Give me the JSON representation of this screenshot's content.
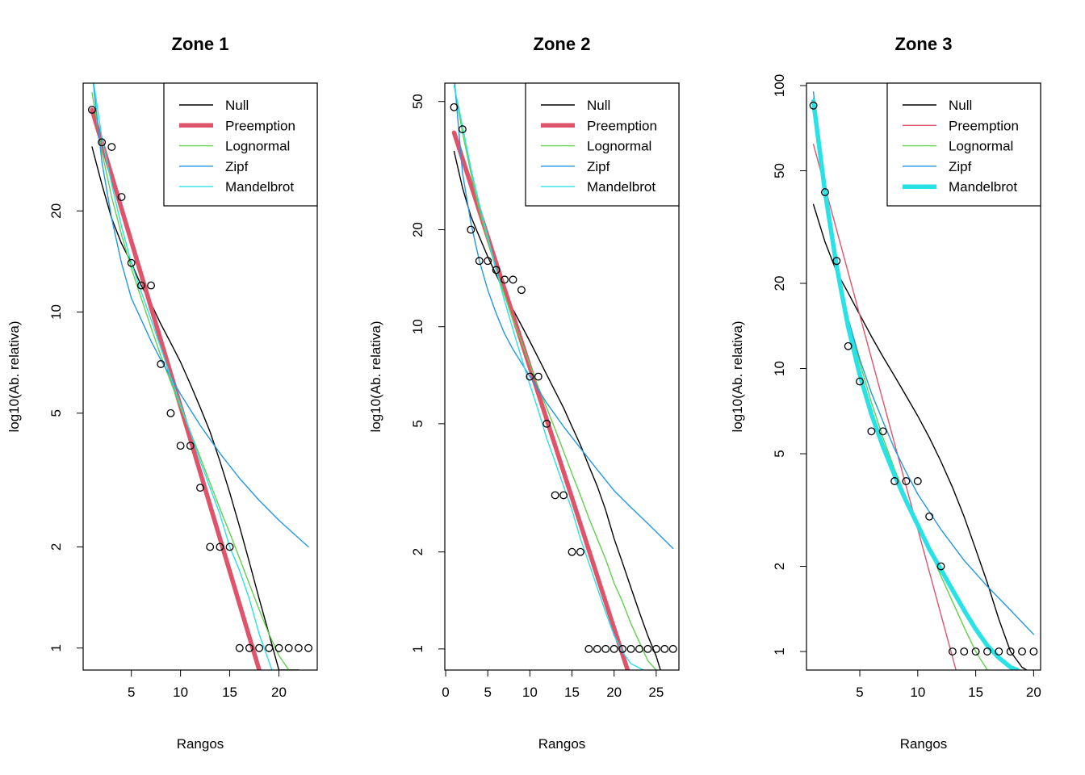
{
  "chart_data": [
    {
      "type": "line",
      "title": "Zone 1",
      "xlabel": "Rangos",
      "ylabel": "log10(Ab. relativa)",
      "xlim": [
        0.1,
        23.9
      ],
      "ylim": [
        0.86,
        48
      ],
      "log_y": true,
      "x_ticks": [
        5,
        10,
        15,
        20
      ],
      "y_ticks": [
        1,
        2,
        5,
        10,
        20
      ],
      "legend_position": "top-right",
      "legend": [
        "Null",
        "Preemption",
        "Lognormal",
        "Zipf",
        "Mandelbrot"
      ],
      "highlight": "Preemption",
      "observed": {
        "x": [
          1,
          2,
          3,
          4,
          5,
          6,
          7,
          8,
          9,
          10,
          11,
          12,
          13,
          14,
          15,
          16,
          17,
          18,
          19,
          20,
          21,
          22,
          23
        ],
        "y": [
          40,
          32,
          31,
          22,
          14,
          12,
          12,
          7,
          5,
          4,
          4,
          3,
          2,
          2,
          2,
          1,
          1,
          1,
          1,
          1,
          1,
          1,
          1
        ]
      },
      "series": [
        {
          "name": "Null",
          "color": "#000000",
          "x": [
            1,
            2,
            3,
            4,
            5,
            6,
            7,
            8,
            9,
            10,
            11,
            12,
            13,
            14,
            15,
            16,
            17,
            18,
            19,
            20,
            21,
            22
          ],
          "y": [
            31,
            24,
            19,
            16,
            14,
            12,
            10.6,
            9.2,
            8.1,
            7.1,
            6.1,
            5.2,
            4.4,
            3.6,
            2.9,
            2.3,
            1.8,
            1.4,
            1.1,
            0.86,
            0.86,
            0.86
          ]
        },
        {
          "name": "Preemption",
          "color": "#DF536B",
          "x": [
            1,
            18
          ],
          "y": [
            40,
            0.86
          ]
        },
        {
          "name": "Lognormal",
          "color": "#61D04F",
          "x": [
            1,
            2,
            3,
            4,
            5,
            6,
            7,
            8,
            9,
            10,
            11,
            12,
            13,
            14,
            15,
            16,
            17,
            18,
            19,
            20,
            21
          ],
          "y": [
            45,
            30,
            22,
            17,
            13.5,
            11,
            9,
            7.4,
            6.2,
            5.2,
            4.4,
            3.7,
            3.1,
            2.6,
            2.2,
            1.85,
            1.55,
            1.3,
            1.1,
            0.95,
            0.86
          ]
        },
        {
          "name": "Zipf",
          "color": "#2297E6",
          "x": [
            1,
            2,
            3,
            4,
            5,
            6,
            7,
            8,
            10,
            12,
            14,
            16,
            18,
            20,
            23
          ],
          "y": [
            52,
            28,
            19,
            14,
            11,
            9.5,
            8.2,
            7.2,
            5.7,
            4.6,
            3.8,
            3.2,
            2.75,
            2.4,
            2.0
          ]
        },
        {
          "name": "Mandelbrot",
          "color": "#28E2E5",
          "x": [
            1,
            2,
            3,
            4,
            5,
            6,
            7,
            8,
            9,
            10,
            11,
            12,
            13,
            14,
            15,
            16,
            17,
            18,
            19.3
          ],
          "y": [
            52,
            33,
            24,
            18,
            14,
            11.5,
            9.5,
            7.8,
            6.4,
            5.3,
            4.4,
            3.6,
            3.0,
            2.5,
            2.0,
            1.7,
            1.4,
            1.1,
            0.86
          ]
        }
      ]
    },
    {
      "type": "line",
      "title": "Zone 2",
      "xlabel": "Rangos",
      "ylabel": "log10(Ab. relativa)",
      "xlim": [
        -0.1,
        27.7
      ],
      "ylim": [
        0.86,
        57
      ],
      "log_y": true,
      "x_ticks": [
        0,
        5,
        10,
        15,
        20,
        25
      ],
      "y_ticks": [
        1,
        2,
        5,
        10,
        20,
        50
      ],
      "legend_position": "top-right",
      "legend": [
        "Null",
        "Preemption",
        "Lognormal",
        "Zipf",
        "Mandelbrot"
      ],
      "highlight": "Preemption",
      "observed": {
        "x": [
          1,
          2,
          3,
          4,
          5,
          6,
          7,
          8,
          9,
          10,
          11,
          12,
          13,
          14,
          15,
          16,
          17,
          18,
          19,
          20,
          21,
          22,
          23,
          24,
          25,
          26,
          27
        ],
        "y": [
          48,
          41,
          20,
          16,
          16,
          15,
          14,
          14,
          13,
          7,
          7,
          5,
          3,
          3,
          2,
          2,
          1,
          1,
          1,
          1,
          1,
          1,
          1,
          1,
          1,
          1,
          1
        ]
      },
      "series": [
        {
          "name": "Null",
          "color": "#000000",
          "x": [
            1,
            2,
            3,
            4,
            5,
            6,
            7,
            8,
            9,
            10,
            11,
            12,
            13,
            14,
            15,
            16,
            17,
            18,
            19,
            20,
            21,
            22,
            23,
            24,
            25,
            25.5
          ],
          "y": [
            35,
            27,
            22,
            19,
            16.5,
            14.5,
            12.8,
            11.3,
            10.1,
            9.0,
            8.0,
            7.1,
            6.3,
            5.6,
            4.9,
            4.3,
            3.7,
            3.2,
            2.7,
            2.2,
            1.85,
            1.55,
            1.3,
            1.1,
            0.95,
            0.86
          ]
        },
        {
          "name": "Preemption",
          "color": "#DF536B",
          "x": [
            1,
            21.6
          ],
          "y": [
            40,
            0.86
          ]
        },
        {
          "name": "Lognormal",
          "color": "#61D04F",
          "x": [
            1,
            2,
            3,
            4,
            5,
            6,
            7,
            8,
            9,
            10,
            11,
            12,
            13,
            14,
            15,
            16,
            17,
            18,
            19,
            20,
            21,
            22,
            23,
            24,
            25
          ],
          "y": [
            56,
            40,
            30,
            23,
            18.5,
            15,
            12.5,
            10.5,
            9,
            7.6,
            6.5,
            5.6,
            4.8,
            4.1,
            3.5,
            3.0,
            2.55,
            2.2,
            1.9,
            1.6,
            1.4,
            1.2,
            1.05,
            0.92,
            0.86
          ]
        },
        {
          "name": "Zipf",
          "color": "#2297E6",
          "x": [
            1,
            2,
            3,
            4,
            5,
            6,
            7,
            8,
            10,
            12,
            14,
            16,
            18,
            20,
            22,
            24,
            27
          ],
          "y": [
            60,
            30,
            21,
            16,
            13,
            11,
            9.5,
            8.5,
            7.0,
            5.8,
            4.9,
            4.2,
            3.6,
            3.1,
            2.75,
            2.45,
            2.05
          ]
        },
        {
          "name": "Mandelbrot",
          "color": "#28E2E5",
          "x": [
            1,
            2,
            3,
            4,
            5,
            6,
            7,
            8,
            9,
            10,
            11,
            12,
            13,
            14,
            15,
            16,
            17,
            18,
            19,
            20,
            21,
            22,
            23.5
          ],
          "y": [
            56,
            42,
            31,
            24,
            19,
            15,
            12,
            9.8,
            8,
            6.6,
            5.5,
            4.5,
            3.8,
            3.2,
            2.7,
            2.2,
            1.85,
            1.55,
            1.3,
            1.1,
            0.98,
            0.9,
            0.86
          ]
        }
      ]
    },
    {
      "type": "line",
      "title": "Zone 3",
      "xlabel": "Rangos",
      "ylabel": "log10(Ab. relativa)",
      "xlim": [
        0.4,
        20.6
      ],
      "ylim": [
        0.86,
        102
      ],
      "log_y": true,
      "x_ticks": [
        5,
        10,
        15,
        20
      ],
      "y_ticks": [
        1,
        2,
        5,
        10,
        20,
        50,
        100
      ],
      "legend_position": "top-right",
      "legend": [
        "Null",
        "Preemption",
        "Lognormal",
        "Zipf",
        "Mandelbrot"
      ],
      "highlight": "Mandelbrot",
      "observed": {
        "x": [
          1,
          2,
          3,
          4,
          5,
          6,
          7,
          8,
          9,
          10,
          11,
          12,
          13,
          14,
          15,
          16,
          17,
          18,
          19,
          20
        ],
        "y": [
          85,
          42,
          24,
          12,
          9,
          6,
          6,
          4,
          4,
          4,
          3,
          2,
          1,
          1,
          1,
          1,
          1,
          1,
          1,
          1
        ]
      },
      "series": [
        {
          "name": "Null",
          "color": "#000000",
          "x": [
            1,
            2,
            3,
            4,
            5,
            6,
            7,
            8,
            9,
            10,
            11,
            12,
            13,
            14,
            15,
            16,
            17,
            18,
            19,
            19.4
          ],
          "y": [
            38,
            28,
            22,
            18.5,
            15.5,
            13,
            11,
            9.4,
            8,
            6.8,
            5.7,
            4.7,
            3.8,
            3.0,
            2.3,
            1.75,
            1.3,
            1.0,
            0.88,
            0.86
          ]
        },
        {
          "name": "Preemption",
          "color": "#DF536B",
          "x": [
            1,
            13.3
          ],
          "y": [
            62,
            0.86
          ]
        },
        {
          "name": "Lognormal",
          "color": "#61D04F",
          "x": [
            1,
            2,
            3,
            4,
            5,
            6,
            7,
            8,
            9,
            10,
            11,
            12,
            13,
            14,
            15,
            16
          ],
          "y": [
            90,
            42,
            24,
            15,
            10.5,
            7.6,
            5.7,
            4.4,
            3.5,
            2.8,
            2.3,
            1.85,
            1.5,
            1.22,
            1.0,
            0.86
          ]
        },
        {
          "name": "Zipf",
          "color": "#2297E6",
          "x": [
            1,
            2,
            3,
            4,
            5,
            6,
            7,
            8,
            9,
            10,
            12,
            14,
            16,
            18,
            20
          ],
          "y": [
            95,
            40,
            23,
            15,
            10.8,
            8.2,
            6.5,
            5.2,
            4.3,
            3.6,
            2.7,
            2.1,
            1.7,
            1.4,
            1.15
          ]
        },
        {
          "name": "Mandelbrot",
          "color": "#28E2E5",
          "x": [
            1,
            2,
            3,
            4,
            5,
            6,
            7,
            8,
            9,
            10,
            11,
            12,
            13,
            14,
            15,
            16,
            17,
            18,
            18.6
          ],
          "y": [
            88,
            42,
            23,
            14,
            9.5,
            6.9,
            5.3,
            4.2,
            3.4,
            2.8,
            2.3,
            1.95,
            1.65,
            1.4,
            1.2,
            1.05,
            0.95,
            0.88,
            0.86
          ]
        }
      ]
    }
  ]
}
